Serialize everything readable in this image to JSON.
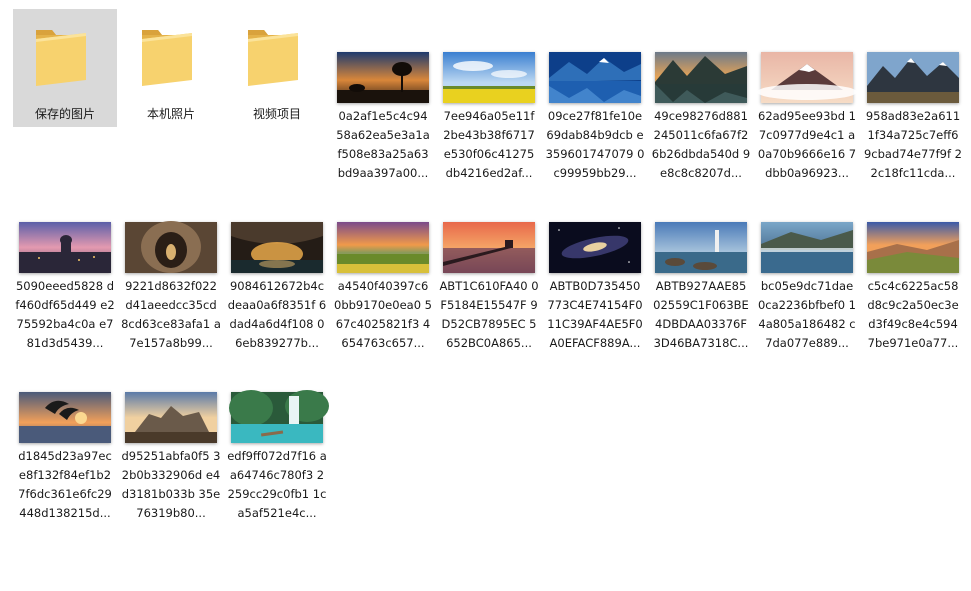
{
  "folders": [
    {
      "label": "保存的图片",
      "icon": "folder-icon",
      "selected": true
    },
    {
      "label": "本机照片",
      "icon": "folder-icon",
      "selected": false
    },
    {
      "label": "视频项目",
      "icon": "folder-icon",
      "selected": false
    }
  ],
  "images": [
    {
      "label": "0a2af1e5c4c94 58a62ea5e3a1a f508e83a25a63 bd9aa397a00...",
      "theme": "savanna-sunset"
    },
    {
      "label": "7ee946a05e11f 2be43b38f6717 e530f06c41275 db4216ed2af...",
      "theme": "rapeseed-field"
    },
    {
      "label": "09ce27f81fe10e 69dab84b9dcb e359601747079 0c99959bb29...",
      "theme": "blue-mountain-lake"
    },
    {
      "label": "49ce98276d881 245011c6fa67f2 6b26dbda540d 9e8c8c8207d...",
      "theme": "mountain-reflection"
    },
    {
      "label": "62ad95ee93bd 17c0977d9e4c1 a0a70b9666e16 7dbb0a96923...",
      "theme": "volcano-sunset"
    },
    {
      "label": "958ad83e2a611 1f34a725c7eff6 9cbad74e77f9f 22c18fc11cda...",
      "theme": "alpine-peaks"
    },
    {
      "label": "5090eeed5828 df460df65d449 e275592ba4c0a e781d3d5439...",
      "theme": "city-dusk"
    },
    {
      "label": "9221d8632f022 d41aeedcc35cd 8cd63ce83afa1 a7e157a8b99...",
      "theme": "stone-tunnel"
    },
    {
      "label": "9084612672b4c deaa0a6f8351f 6dad4a6d4f108 06eb839277b...",
      "theme": "cave-lights"
    },
    {
      "label": "a4540f40397c6 0bb9170e0ea0 567c4025821f3 4654763c657...",
      "theme": "meadow-sunset"
    },
    {
      "label": "ABT1C610FA40 0F5184E15547F 9D52CB7895EC 5652BC0A865...",
      "theme": "pier-sunset"
    },
    {
      "label": "ABTB0D735450 773C4E74154F0 11C39AF4AE5F0 A0EFACF889A...",
      "theme": "galaxy"
    },
    {
      "label": "ABTB927AAE85 02559C1F063BE 4DBDAA03376F 3D46BA7318C...",
      "theme": "lighthouse-coast"
    },
    {
      "label": "bc05e9dc71dae 0ca2236bfbef0 14a805a186482 c7da077e889...",
      "theme": "misty-lake"
    },
    {
      "label": "c5c4c6225ac58 d8c9c2a50ec3e d3f49c8e4c594 7be971e0a77...",
      "theme": "hill-sunrise"
    },
    {
      "label": "d1845d23a97ec e8f132f84ef1b2 7f6dc361e6fc29 448d138215d...",
      "theme": "dolphins-sunset"
    },
    {
      "label": "d95251abfa0f5 32b0b332906d e4d3181b033b 35e76319b80...",
      "theme": "castle-ruins"
    },
    {
      "label": "edf9ff072d7f16 aa64746c780f3 2259cc29c0fb1 1ca5af521e4c...",
      "theme": "waterfall"
    }
  ],
  "colors": {
    "selection": "#d9d9d9",
    "folder_back": "#e7b84f",
    "folder_front": "#f8d775"
  }
}
